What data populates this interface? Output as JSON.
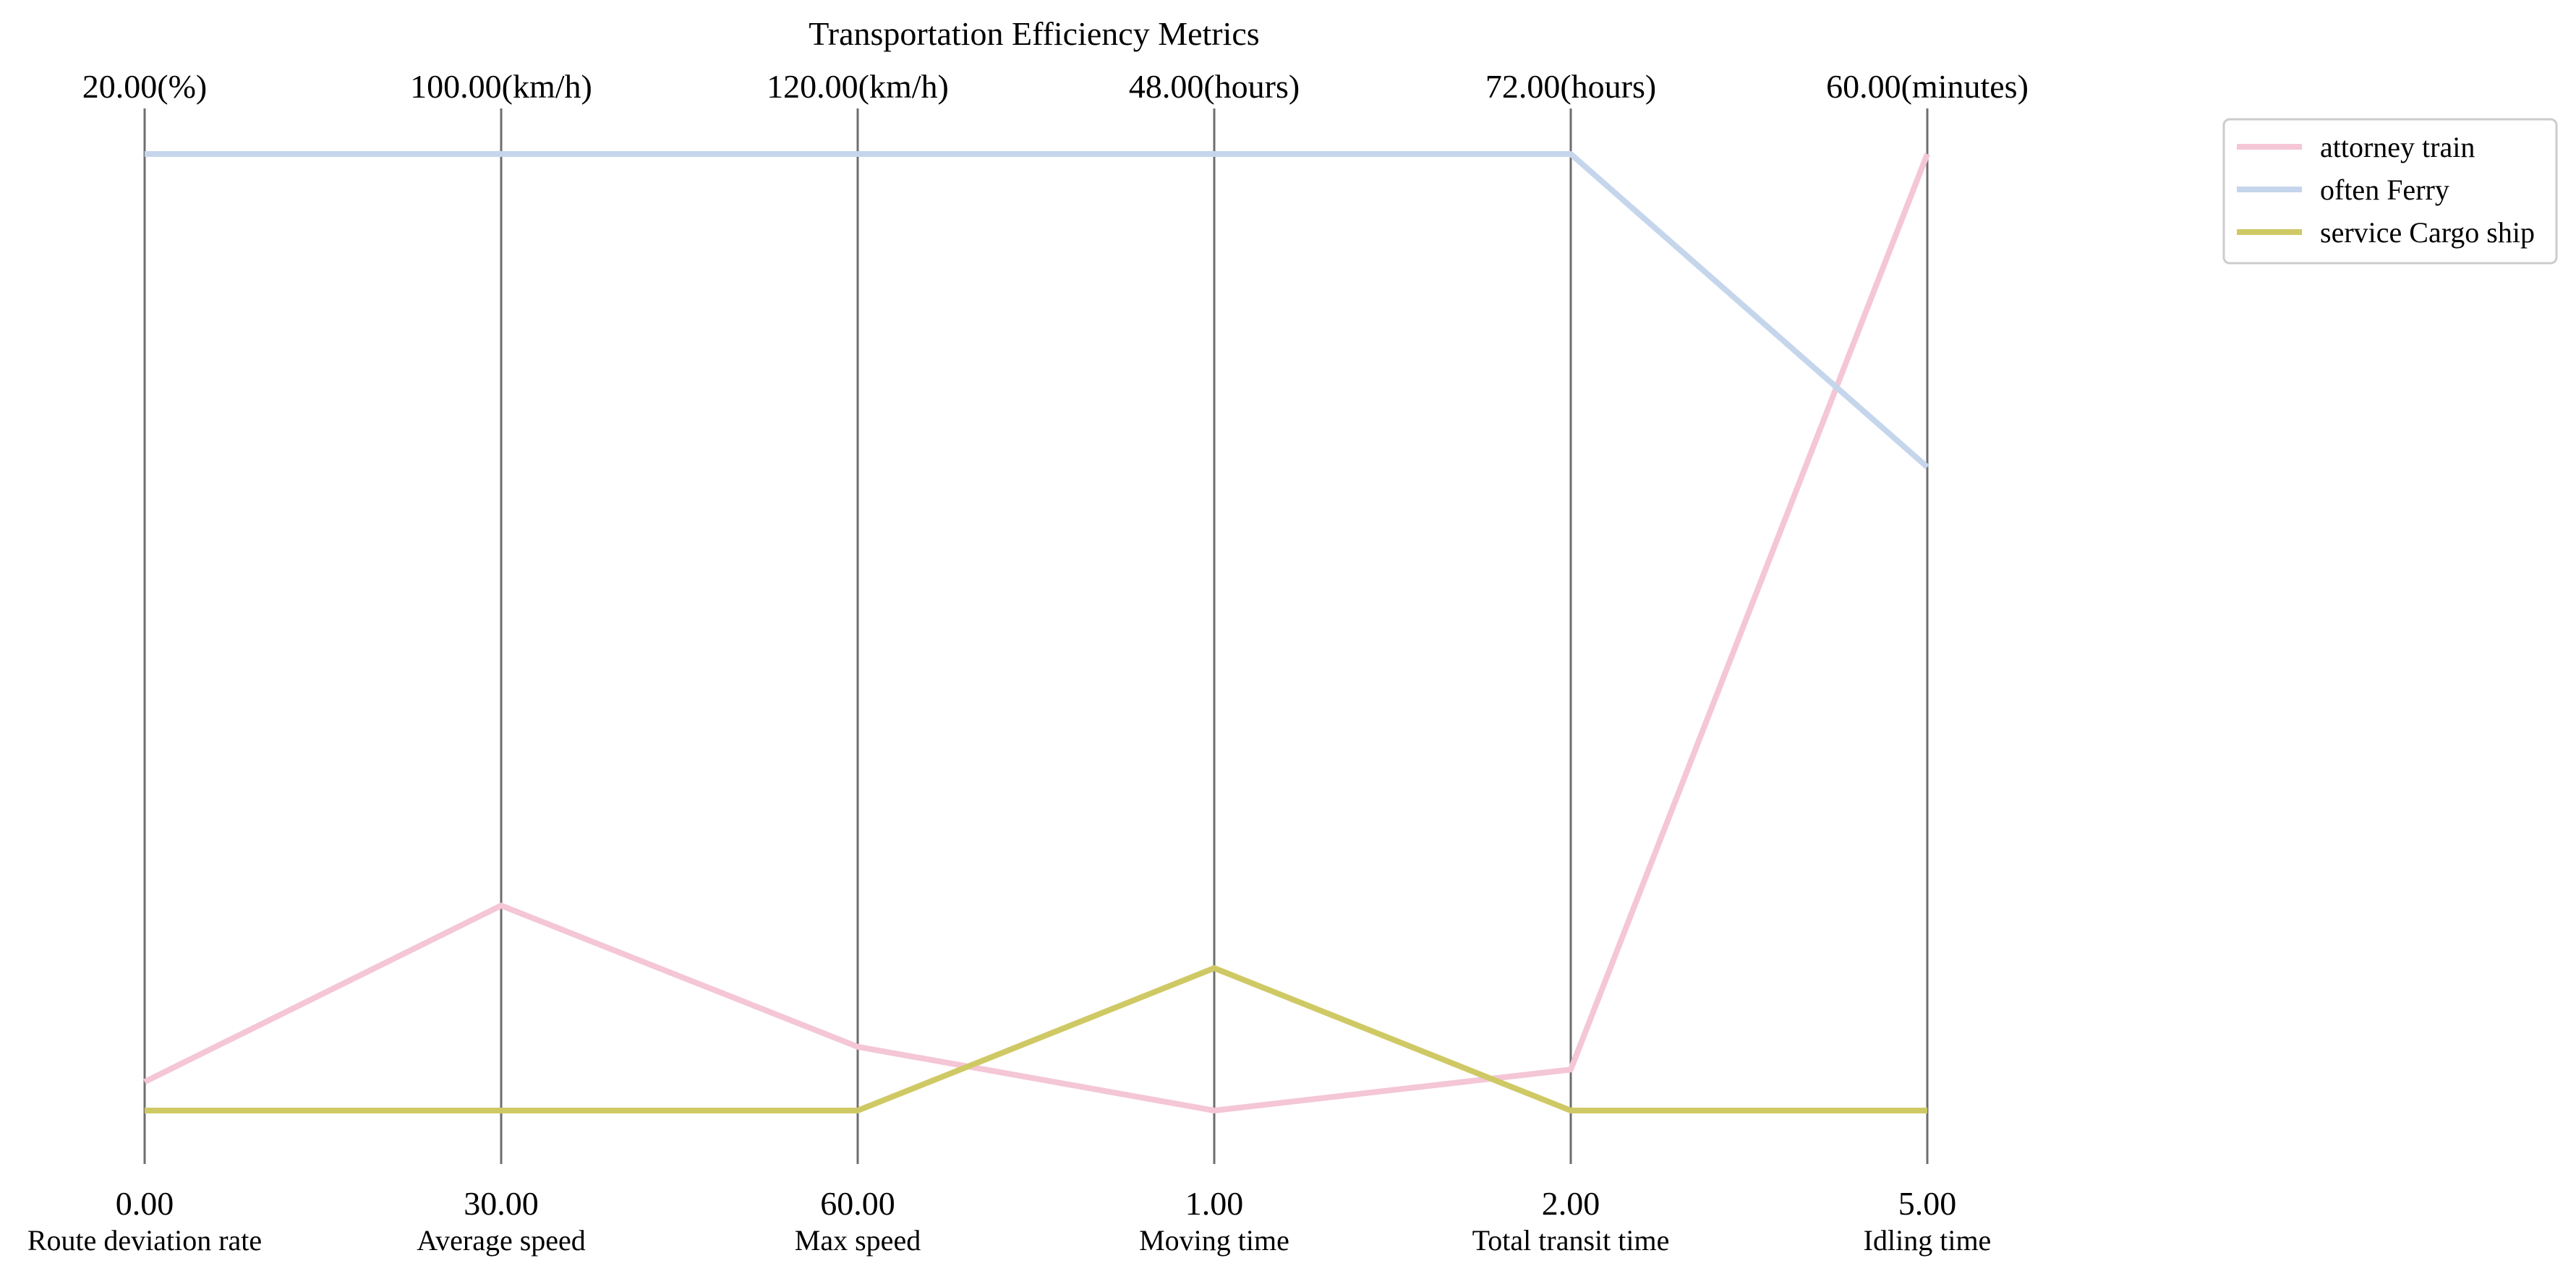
{
  "chart_data": {
    "type": "parallel_coordinates",
    "title": "Transportation Efficiency Metrics",
    "axes": [
      {
        "label": "Route deviation rate",
        "min": 0,
        "max": 20,
        "min_label": "0.00",
        "max_label": "20.00(%)"
      },
      {
        "label": "Average speed",
        "min": 30,
        "max": 100,
        "min_label": "30.00",
        "max_label": "100.00(km/h)"
      },
      {
        "label": "Max speed",
        "min": 60,
        "max": 120,
        "min_label": "60.00",
        "max_label": "120.00(km/h)"
      },
      {
        "label": "Moving time",
        "min": 1,
        "max": 48,
        "min_label": "1.00",
        "max_label": "48.00(hours)"
      },
      {
        "label": "Total transit time",
        "min": 2,
        "max": 72,
        "min_label": "2.00",
        "max_label": "72.00(hours)"
      },
      {
        "label": "Idling time",
        "min": 5,
        "max": 60,
        "min_label": "5.00",
        "max_label": "60.00(minutes)"
      }
    ],
    "series": [
      {
        "name": "attorney train",
        "color": "#f4c6d6",
        "values": [
          0.6,
          45,
          64,
          1,
          5,
          60
        ]
      },
      {
        "name": "often Ferry",
        "color": "#c5d6ec",
        "values": [
          20,
          100,
          120,
          48,
          72,
          42
        ]
      },
      {
        "name": "service Cargo ship",
        "color": "#cfc965",
        "values": [
          0,
          30,
          60,
          8,
          2,
          5
        ]
      }
    ],
    "legend_position": "top-right",
    "grid": false
  }
}
